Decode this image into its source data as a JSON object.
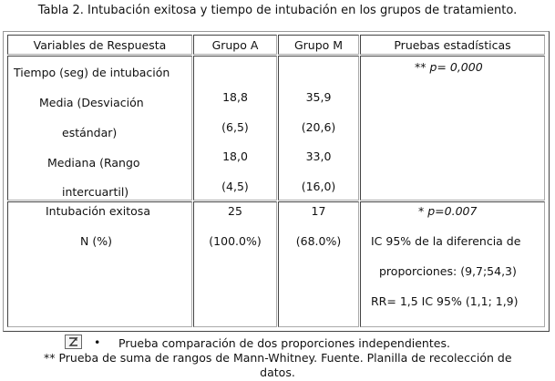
{
  "caption": "Tabla 2. Intubación exitosa y tiempo de intubación  en los grupos de tratamiento.",
  "headers": [
    "Variables de Respuesta",
    "Grupo A",
    "Grupo M",
    "Pruebas estadísticas"
  ],
  "row1": {
    "variables": [
      "Tiempo (seg) de intubación",
      "Media  (Desviación",
      "estándar)",
      "Mediana (Rango",
      "intercuartil)"
    ],
    "grupo_a": [
      "18,8",
      "(6,5)",
      "18,0",
      "(4,5)"
    ],
    "grupo_m": [
      "35,9",
      "(20,6)",
      "33,0",
      "(16,0)"
    ],
    "stats_prefix": "** ",
    "stats_value": "p= 0,000"
  },
  "row2": {
    "variables": [
      "Intubación exitosa",
      "N  (%)"
    ],
    "grupo_a": [
      "25",
      "(100.0%)"
    ],
    "grupo_m": [
      "17",
      "(68.0%)"
    ],
    "stats_prefix": "*  ",
    "stats_value": "p=0.007",
    "stats_lines": [
      "IC 95% de la diferencia de",
      "proporciones: (9,7;54,3)",
      "RR= 1,5 IC 95% (1,1; 1,9)"
    ]
  },
  "footnotes": {
    "bullet": "•",
    "note1": "Prueba comparación de dos proporciones  independientes.",
    "note2_line1": "** Prueba de suma de rangos de Mann-Whitney. Fuente. Planilla de recolección de",
    "note2_line2": "datos."
  }
}
